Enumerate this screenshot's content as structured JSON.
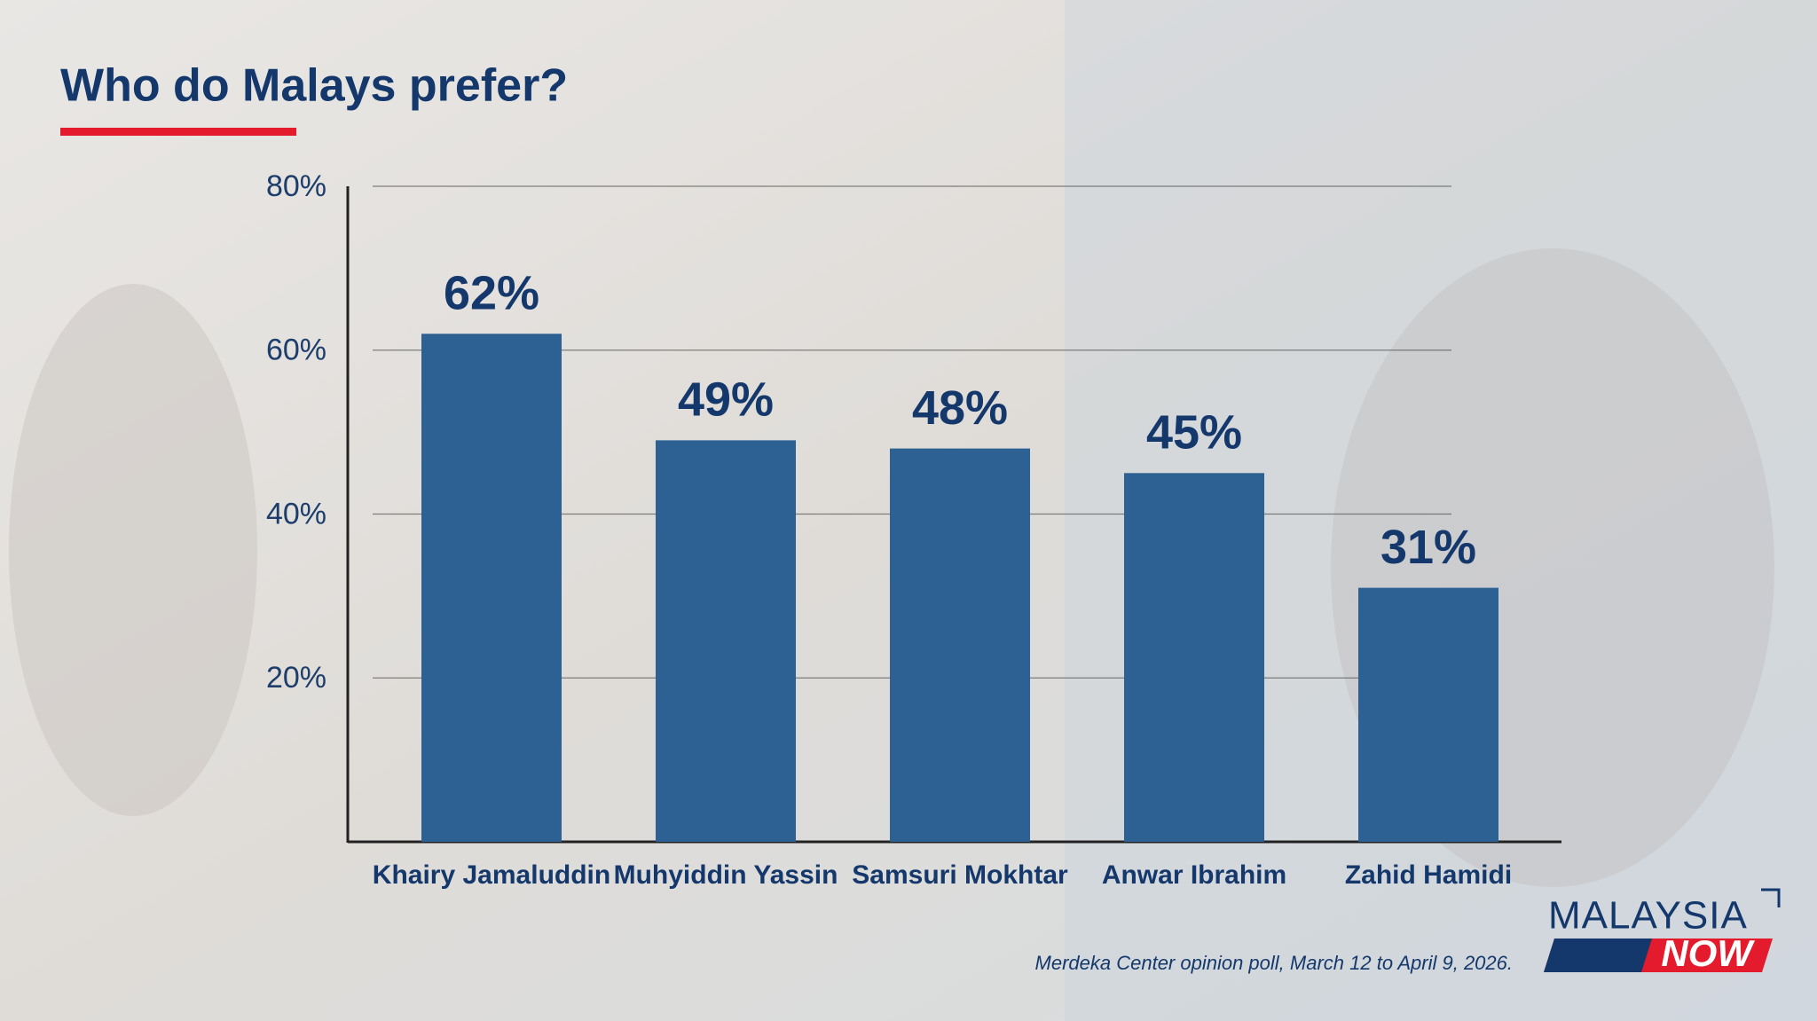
{
  "chart_data": {
    "type": "bar",
    "title": "Who do Malays prefer?",
    "categories": [
      "Khairy Jamaluddin",
      "Muhyiddin Yassin",
      "Samsuri Mokhtar",
      "Anwar Ibrahim",
      "Zahid Hamidi"
    ],
    "values": [
      62,
      49,
      48,
      45,
      31
    ],
    "value_labels": [
      "62%",
      "49%",
      "48%",
      "45%",
      "31%"
    ],
    "color": "#2d6194",
    "ylim": [
      0,
      80
    ],
    "yticks": [
      {
        "value": 20,
        "label": "20%"
      },
      {
        "value": 40,
        "label": "40%"
      },
      {
        "value": 60,
        "label": "60%"
      },
      {
        "value": 80,
        "label": "80%"
      }
    ],
    "grid": true,
    "source": "Merdeka Center opinion poll, March 12 to April 9, 2026.",
    "brand": [
      "MALAYSIA",
      "NOW"
    ]
  }
}
